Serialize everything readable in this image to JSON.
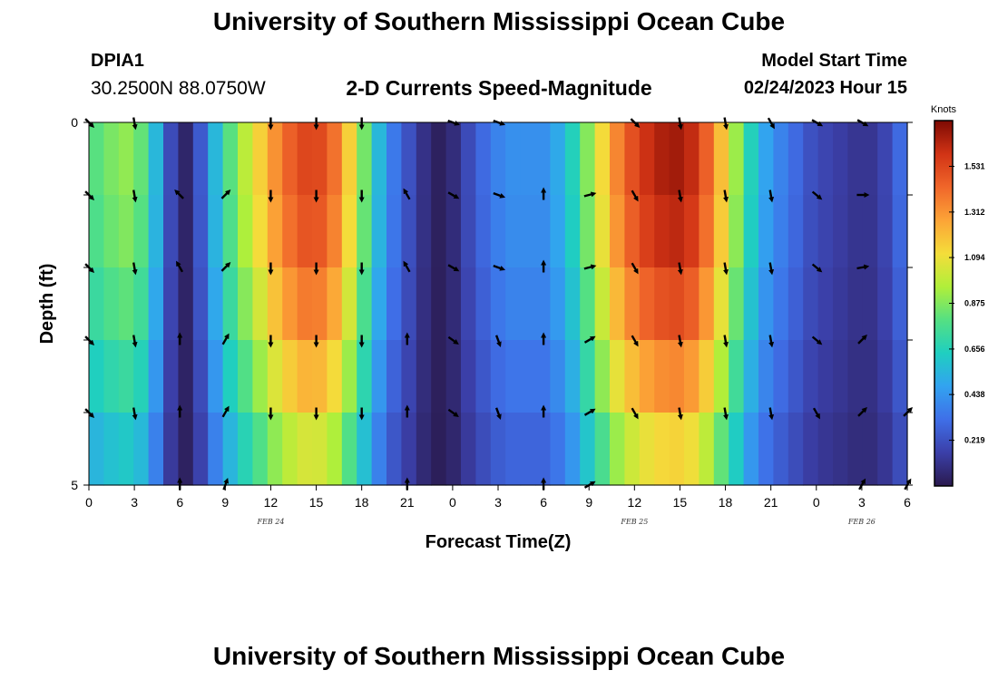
{
  "header": {
    "title": "University of Southern Mississippi Ocean Cube",
    "station_id": "DPIA1",
    "station_coords": "30.2500N  88.0750W",
    "subtitle": "2-D Currents Speed-Magnitude",
    "model_label": "Model Start Time",
    "model_date": "02/24/2023 Hour 15"
  },
  "footer": {
    "repeated_title": "University of Southern Mississippi Ocean Cube"
  },
  "chart_data": {
    "type": "heatmap",
    "xlabel": "Forecast Time(Z)",
    "ylabel": "Depth (ft)",
    "x_tick_labels": [
      "0",
      "3",
      "6",
      "9",
      "12",
      "15",
      "18",
      "21",
      "0",
      "3",
      "6",
      "9",
      "12",
      "15",
      "18",
      "21",
      "0",
      "3",
      "6"
    ],
    "date_labels": [
      {
        "text": "FEB 24",
        "tick_index": 4
      },
      {
        "text": "FEB 25",
        "tick_index": 12
      },
      {
        "text": "FEB 26",
        "tick_index": 17
      }
    ],
    "y_tick_labels": [
      "0",
      "5"
    ],
    "ylim": [
      0,
      5
    ],
    "colorbar": {
      "unit": "Knots",
      "ticks": [
        0.219,
        0.438,
        0.656,
        0.875,
        1.094,
        1.312,
        1.531
      ],
      "labels": [
        "0.219",
        "0.438",
        "0.656",
        "0.875",
        "1.094",
        "1.312",
        "1.531"
      ],
      "range": [
        0.0,
        1.75
      ],
      "colors": [
        "#2a1a4e",
        "#3b3fa8",
        "#3f6fe8",
        "#32a3f0",
        "#1fcfc0",
        "#55e082",
        "#b0ef3a",
        "#f4dd3a",
        "#fca437",
        "#f0662a",
        "#d13315",
        "#7d0a03"
      ]
    },
    "depth_rows": 5,
    "speed_profile": [
      {
        "hour": 0,
        "value": 0.8
      },
      {
        "hour": 1,
        "value": 0.86
      },
      {
        "hour": 2,
        "value": 0.9
      },
      {
        "hour": 3,
        "value": 0.82
      },
      {
        "hour": 4,
        "value": 0.55
      },
      {
        "hour": 5,
        "value": 0.2
      },
      {
        "hour": 6,
        "value": 0.05
      },
      {
        "hour": 7,
        "value": 0.25
      },
      {
        "hour": 8,
        "value": 0.55
      },
      {
        "hour": 9,
        "value": 0.8
      },
      {
        "hour": 10,
        "value": 0.98
      },
      {
        "hour": 11,
        "value": 1.15
      },
      {
        "hour": 12,
        "value": 1.32
      },
      {
        "hour": 13,
        "value": 1.45
      },
      {
        "hour": 14,
        "value": 1.53
      },
      {
        "hour": 15,
        "value": 1.52
      },
      {
        "hour": 16,
        "value": 1.4
      },
      {
        "hour": 17,
        "value": 1.15
      },
      {
        "hour": 18,
        "value": 0.85
      },
      {
        "hour": 19,
        "value": 0.55
      },
      {
        "hour": 20,
        "value": 0.35
      },
      {
        "hour": 21,
        "value": 0.22
      },
      {
        "hour": 22,
        "value": 0.1
      },
      {
        "hour": 23,
        "value": 0.03
      },
      {
        "hour": 24,
        "value": 0.08
      },
      {
        "hour": 25,
        "value": 0.2
      },
      {
        "hour": 26,
        "value": 0.3
      },
      {
        "hour": 27,
        "value": 0.38
      },
      {
        "hour": 28,
        "value": 0.42
      },
      {
        "hour": 29,
        "value": 0.42
      },
      {
        "hour": 30,
        "value": 0.42
      },
      {
        "hour": 31,
        "value": 0.5
      },
      {
        "hour": 32,
        "value": 0.65
      },
      {
        "hour": 33,
        "value": 0.88
      },
      {
        "hour": 34,
        "value": 1.12
      },
      {
        "hour": 35,
        "value": 1.35
      },
      {
        "hour": 36,
        "value": 1.5
      },
      {
        "hour": 37,
        "value": 1.6
      },
      {
        "hour": 38,
        "value": 1.66
      },
      {
        "hour": 39,
        "value": 1.68
      },
      {
        "hour": 40,
        "value": 1.62
      },
      {
        "hour": 41,
        "value": 1.45
      },
      {
        "hour": 42,
        "value": 1.2
      },
      {
        "hour": 43,
        "value": 0.92
      },
      {
        "hour": 44,
        "value": 0.65
      },
      {
        "hour": 45,
        "value": 0.48
      },
      {
        "hour": 46,
        "value": 0.38
      },
      {
        "hour": 47,
        "value": 0.3
      },
      {
        "hour": 48,
        "value": 0.22
      },
      {
        "hour": 49,
        "value": 0.18
      },
      {
        "hour": 50,
        "value": 0.15
      },
      {
        "hour": 51,
        "value": 0.12
      },
      {
        "hour": 52,
        "value": 0.12
      },
      {
        "hour": 53,
        "value": 0.18
      },
      {
        "hour": 54,
        "value": 0.3
      }
    ],
    "depth_factors": [
      1.0,
      0.97,
      0.9,
      0.8,
      0.68
    ],
    "arrow_depths": [
      0,
      1,
      2,
      3,
      4,
      5
    ],
    "arrows": [
      {
        "hour": 0,
        "dirs": [
          135,
          135,
          135,
          135,
          135,
          null
        ]
      },
      {
        "hour": 3,
        "dirs": [
          170,
          170,
          170,
          170,
          170,
          null
        ]
      },
      {
        "hour": 6,
        "dirs": [
          null,
          315,
          330,
          0,
          0,
          0
        ]
      },
      {
        "hour": 9,
        "dirs": [
          null,
          45,
          45,
          30,
          30,
          20
        ]
      },
      {
        "hour": 12,
        "dirs": [
          180,
          180,
          180,
          180,
          180,
          null
        ]
      },
      {
        "hour": 15,
        "dirs": [
          180,
          180,
          180,
          180,
          180,
          null
        ]
      },
      {
        "hour": 18,
        "dirs": [
          180,
          180,
          180,
          180,
          180,
          null
        ]
      },
      {
        "hour": 21,
        "dirs": [
          null,
          330,
          330,
          0,
          0,
          0
        ]
      },
      {
        "hour": 24,
        "dirs": [
          110,
          120,
          120,
          125,
          125,
          null
        ]
      },
      {
        "hour": 27,
        "dirs": [
          110,
          110,
          110,
          160,
          160,
          null
        ]
      },
      {
        "hour": 30,
        "dirs": [
          null,
          0,
          0,
          0,
          0,
          0
        ]
      },
      {
        "hour": 33,
        "dirs": [
          null,
          75,
          75,
          60,
          60,
          60
        ]
      },
      {
        "hour": 36,
        "dirs": [
          135,
          150,
          150,
          150,
          150,
          null
        ]
      },
      {
        "hour": 39,
        "dirs": [
          170,
          170,
          170,
          170,
          170,
          null
        ]
      },
      {
        "hour": 42,
        "dirs": [
          170,
          170,
          170,
          170,
          170,
          null
        ]
      },
      {
        "hour": 45,
        "dirs": [
          150,
          170,
          170,
          170,
          170,
          null
        ]
      },
      {
        "hour": 48,
        "dirs": [
          120,
          130,
          130,
          130,
          150,
          null
        ]
      },
      {
        "hour": 51,
        "dirs": [
          120,
          90,
          80,
          45,
          45,
          30
        ]
      },
      {
        "hour": 54,
        "dirs": [
          null,
          null,
          null,
          null,
          45,
          30
        ]
      }
    ]
  }
}
